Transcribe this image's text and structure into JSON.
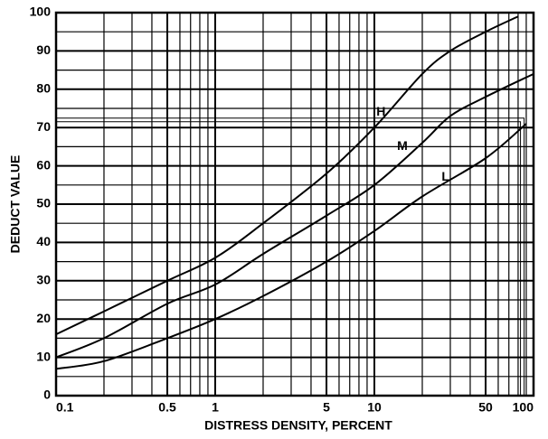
{
  "chart_data": {
    "type": "line",
    "xlabel": "DISTRESS DENSITY, PERCENT",
    "ylabel": "DEDUCT VALUE",
    "xscale": "log",
    "xlim": [
      0.1,
      100
    ],
    "ylim": [
      0,
      100
    ],
    "xticks": [
      0.1,
      0.5,
      1,
      5,
      10,
      50,
      100
    ],
    "xgrid": [
      0.2,
      0.3,
      0.4,
      0.6,
      0.7,
      0.8,
      0.9,
      2,
      3,
      4,
      6,
      7,
      8,
      9,
      20,
      30,
      40,
      60,
      70,
      80,
      90
    ],
    "yticks": [
      0,
      10,
      20,
      30,
      40,
      50,
      60,
      70,
      80,
      90,
      100
    ],
    "ygrid": [
      5,
      15,
      25,
      35,
      45,
      55,
      65,
      75,
      85,
      95
    ],
    "grid": true,
    "reference_line": {
      "y": 72,
      "x": 85
    },
    "series": [
      {
        "name": "H",
        "color": "#000000",
        "x": [
          0.1,
          0.2,
          0.5,
          1,
          2,
          5,
          10,
          20,
          30,
          50,
          80
        ],
        "values": [
          16,
          22,
          30,
          36,
          45,
          58,
          70,
          84,
          90,
          95,
          99
        ],
        "label_at": [
          11,
          74
        ]
      },
      {
        "name": "M",
        "color": "#000000",
        "x": [
          0.1,
          0.2,
          0.5,
          1,
          2,
          5,
          10,
          20,
          30,
          50,
          100
        ],
        "values": [
          10,
          15,
          24,
          29,
          37,
          47,
          55,
          66,
          73,
          78,
          84
        ],
        "label_at": [
          15,
          65
        ]
      },
      {
        "name": "L",
        "color": "#000000",
        "x": [
          0.1,
          0.2,
          0.5,
          1,
          2,
          5,
          10,
          20,
          50,
          90
        ],
        "values": [
          7,
          9,
          15,
          20,
          26,
          35,
          43,
          52,
          62,
          71
        ],
        "label_at": [
          28,
          57
        ]
      }
    ]
  }
}
